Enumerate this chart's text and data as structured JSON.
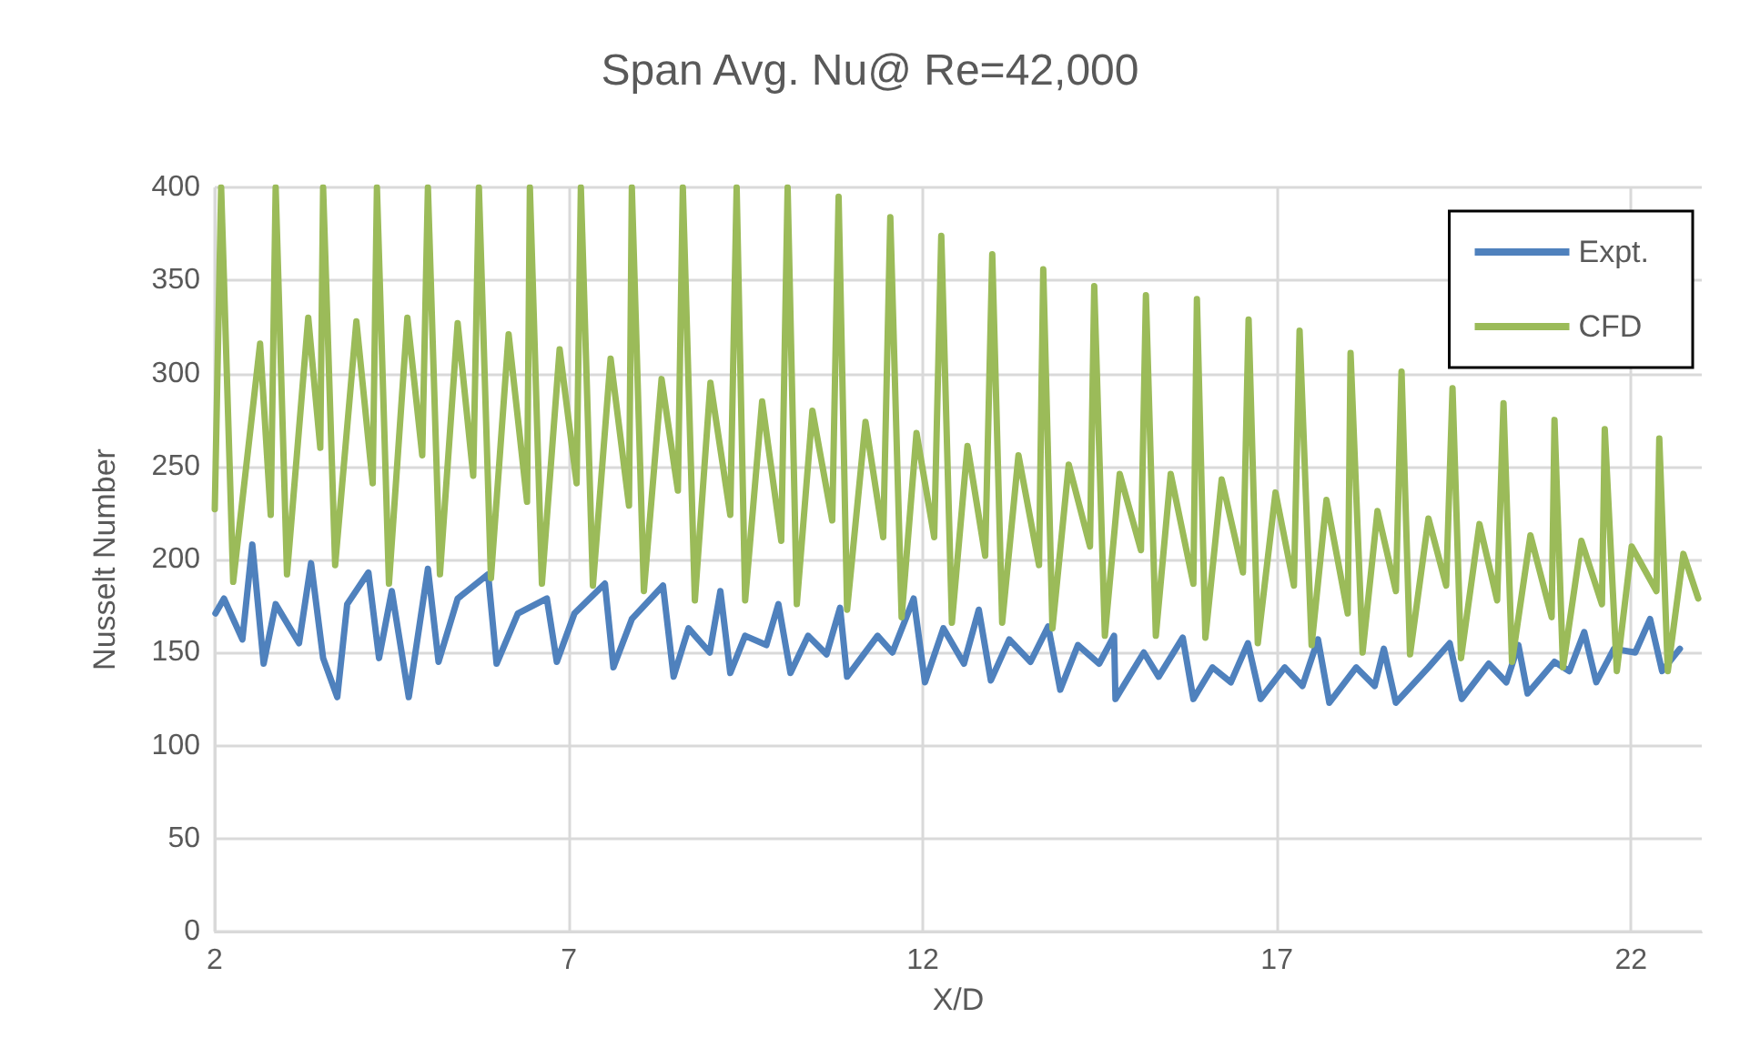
{
  "chart_data": {
    "type": "line",
    "title": "Span Avg. Nu@ Re=42,000",
    "xlabel": "X/D",
    "ylabel": "Nusselt Number",
    "xlim": [
      2,
      23
    ],
    "xticks": [
      2,
      7,
      12,
      17,
      22
    ],
    "ylim": [
      0,
      400
    ],
    "yticks": [
      0,
      50,
      100,
      150,
      200,
      250,
      300,
      350,
      400
    ],
    "grid": true,
    "legend": "top right",
    "marker": "none",
    "line_style": "solid",
    "series": [
      {
        "name": "Expt.",
        "color": "#4f81bd",
        "x": [
          2.01,
          2.13,
          2.39,
          2.53,
          2.69,
          2.86,
          3.19,
          3.36,
          3.53,
          3.73,
          3.87,
          4.17,
          4.32,
          4.5,
          4.74,
          5.01,
          5.16,
          5.43,
          5.86,
          5.98,
          6.28,
          6.69,
          6.83,
          7.08,
          7.51,
          7.63,
          7.89,
          8.33,
          8.48,
          8.69,
          8.99,
          9.14,
          9.28,
          9.49,
          9.79,
          9.96,
          10.13,
          10.38,
          10.64,
          10.83,
          10.93,
          11.36,
          11.57,
          11.87,
          12.03,
          12.29,
          12.58,
          12.79,
          12.96,
          13.22,
          13.52,
          13.77,
          13.94,
          14.19,
          14.49,
          14.7,
          14.72,
          15.12,
          15.33,
          15.67,
          15.82,
          16.09,
          16.35,
          16.59,
          16.77,
          17.11,
          17.36,
          17.58,
          17.74,
          18.12,
          18.38,
          18.51,
          18.68,
          19.14,
          19.44,
          19.61,
          19.99,
          20.24,
          20.41,
          20.54,
          20.92,
          21.13,
          21.34,
          21.51,
          21.76,
          22.06,
          22.27,
          22.44,
          22.69
        ],
        "values": [
          171,
          179,
          157,
          208,
          144,
          176,
          155,
          198,
          147,
          126,
          176,
          193,
          147,
          183,
          126,
          195,
          145,
          179,
          192,
          144,
          171,
          179,
          145,
          171,
          187,
          142,
          168,
          186,
          137,
          163,
          150,
          183,
          139,
          159,
          154,
          176,
          139,
          159,
          149,
          174,
          137,
          159,
          150,
          179,
          134,
          163,
          144,
          173,
          135,
          157,
          145,
          164,
          130,
          154,
          144,
          159,
          125,
          150,
          137,
          158,
          125,
          142,
          134,
          155,
          125,
          142,
          132,
          157,
          123,
          142,
          132,
          152,
          123,
          142,
          155,
          125,
          144,
          134,
          154,
          128,
          145,
          140,
          161,
          134,
          152,
          150,
          168,
          140,
          152
        ]
      },
      {
        "name": "CFD",
        "color": "#9bbb59",
        "x": [
          2.0,
          2.09,
          2.26,
          2.64,
          2.79,
          2.86,
          3.02,
          3.32,
          3.49,
          3.53,
          3.7,
          4.0,
          4.23,
          4.29,
          4.46,
          4.72,
          4.93,
          5.01,
          5.18,
          5.43,
          5.65,
          5.73,
          5.9,
          6.15,
          6.41,
          6.45,
          6.62,
          6.87,
          7.11,
          7.17,
          7.34,
          7.59,
          7.85,
          7.89,
          8.06,
          8.31,
          8.54,
          8.61,
          8.78,
          9.0,
          9.28,
          9.37,
          9.49,
          9.73,
          10.0,
          10.09,
          10.22,
          10.44,
          10.72,
          10.81,
          10.93,
          11.19,
          11.44,
          11.54,
          11.7,
          11.91,
          12.16,
          12.26,
          12.41,
          12.63,
          12.88,
          12.98,
          13.12,
          13.35,
          13.64,
          13.7,
          13.83,
          14.06,
          14.36,
          14.42,
          14.57,
          14.78,
          15.08,
          15.15,
          15.29,
          15.5,
          15.82,
          15.87,
          15.99,
          16.22,
          16.52,
          16.6,
          16.73,
          16.98,
          17.24,
          17.32,
          17.49,
          17.7,
          18.0,
          18.04,
          18.21,
          18.42,
          18.68,
          18.76,
          18.88,
          19.14,
          19.39,
          19.48,
          19.6,
          19.86,
          20.11,
          20.2,
          20.32,
          20.58,
          20.88,
          20.92,
          21.04,
          21.3,
          21.59,
          21.63,
          21.8,
          22.01,
          22.36,
          22.4,
          22.52,
          22.74,
          22.95
        ],
        "values": [
          227,
          400,
          188,
          316,
          224,
          400,
          192,
          330,
          260,
          400,
          197,
          328,
          241,
          400,
          187,
          330,
          256,
          400,
          192,
          327,
          245,
          400,
          190,
          321,
          231,
          400,
          187,
          313,
          241,
          400,
          186,
          308,
          229,
          400,
          183,
          297,
          237,
          400,
          178,
          295,
          224,
          400,
          178,
          285,
          210,
          400,
          176,
          280,
          221,
          395,
          173,
          274,
          212,
          384,
          169,
          268,
          212,
          374,
          166,
          261,
          202,
          364,
          166,
          256,
          197,
          356,
          163,
          251,
          207,
          347,
          159,
          246,
          205,
          342,
          159,
          246,
          187,
          340,
          158,
          243,
          193,
          329,
          155,
          236,
          186,
          323,
          154,
          232,
          171,
          311,
          150,
          226,
          183,
          301,
          149,
          222,
          186,
          292,
          147,
          219,
          178,
          284,
          145,
          213,
          169,
          275,
          142,
          210,
          176,
          270,
          140,
          207,
          183,
          265,
          140,
          203,
          179
        ]
      }
    ]
  }
}
